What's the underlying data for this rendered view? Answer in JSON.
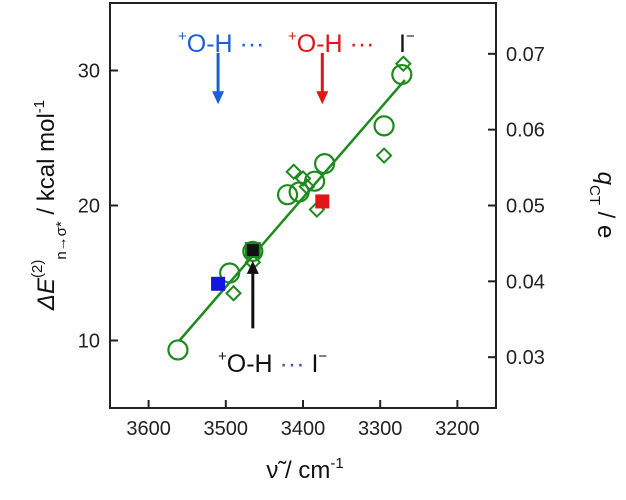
{
  "chart_data": {
    "type": "scatter",
    "xlabel": "ν̃ / cm⁻¹",
    "ylabel_left": "ΔE(2) n→σ* / kcal mol⁻¹",
    "ylabel_left_parts": {
      "main": "ΔE",
      "sup": "(2)",
      "sub": "n→σ*",
      "unit": " / kcal mol",
      "unit_sup": "-1"
    },
    "ylabel_right_parts": {
      "main": "q",
      "sub": "CT",
      "unit": " / e"
    },
    "xlabel_parts": {
      "main": "ν̃",
      "unit": " / cm",
      "unit_sup": "-1"
    },
    "xlim": [
      3650,
      3150
    ],
    "ylim_left": [
      5,
      35
    ],
    "ylim_right": [
      0.0233,
      0.0767
    ],
    "x_ticks": [
      3600,
      3500,
      3400,
      3300,
      3200
    ],
    "y_ticks_left": [
      10,
      20,
      30
    ],
    "y_ticks_right": [
      0.03,
      0.04,
      0.05,
      0.06,
      0.07
    ],
    "series": [
      {
        "marker": "circle",
        "color": "#1e8a1e",
        "points": [
          [
            3562,
            9.3
          ],
          [
            3495,
            15.0
          ],
          [
            3465,
            16.6
          ],
          [
            3420,
            20.8
          ],
          [
            3405,
            21.0
          ],
          [
            3385,
            21.8
          ],
          [
            3372,
            23.1
          ],
          [
            3295,
            25.9
          ],
          [
            3272,
            29.7
          ]
        ]
      },
      {
        "marker": "diamond",
        "color": "#1e8a1e",
        "points": [
          [
            3490,
            13.5
          ],
          [
            3465,
            15.8
          ],
          [
            3412,
            22.5
          ],
          [
            3400,
            22.0
          ],
          [
            3395,
            21.4
          ],
          [
            3382,
            19.7
          ],
          [
            3295,
            23.7
          ],
          [
            3270,
            30.5
          ]
        ]
      },
      {
        "marker": "square",
        "color": "#1515e0",
        "points": [
          [
            3510,
            14.2
          ]
        ]
      },
      {
        "marker": "square",
        "color": "#e01515",
        "points": [
          [
            3375,
            20.3
          ]
        ]
      },
      {
        "marker": "square",
        "color": "#111111",
        "points": [
          [
            3465,
            16.7
          ]
        ]
      }
    ],
    "fit_line": {
      "color": "#1e8a1e",
      "points": [
        [
          3560,
          10.0
        ],
        [
          3268,
          29.3
        ]
      ]
    },
    "annotations": [
      {
        "id": "blue",
        "color": "#1a5fd6",
        "arrow_to": [
          3510,
          27.5
        ],
        "arrow_from": [
          3510,
          31.3
        ],
        "dir": "down",
        "parts": [
          {
            "t": "+",
            "sup": true
          },
          {
            "t": "O-H ··· "
          }
        ]
      },
      {
        "id": "red",
        "color": "#e01515",
        "arrow_to": [
          3375,
          27.5
        ],
        "arrow_from": [
          3375,
          31.3
        ],
        "dir": "down",
        "parts": [
          {
            "t": "+",
            "sup": true
          },
          {
            "t": "O-H ··· "
          }
        ]
      },
      {
        "id": "black",
        "color": "#111111",
        "arrow_to": [
          3465,
          15.9
        ],
        "arrow_from": [
          3465,
          10.9
        ],
        "dir": "up",
        "parts": [
          {
            "t": "+",
            "sup": true
          },
          {
            "t": "O-H "
          },
          {
            "t": "··· ",
            "color": "#4a5a8a"
          },
          {
            "t": "I",
            "color": "#111111"
          },
          {
            "t": "−",
            "sup": true,
            "color": "#111111"
          }
        ]
      }
    ],
    "iodide_label": {
      "text": "I",
      "sup": "−",
      "color": "#111111"
    }
  }
}
